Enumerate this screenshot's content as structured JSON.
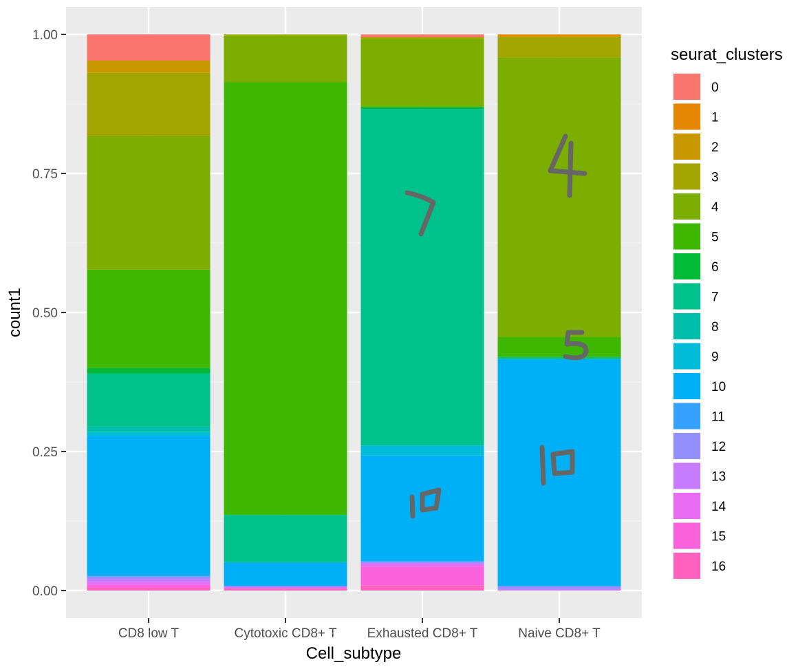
{
  "chart_data": {
    "type": "bar",
    "stacked": "fill",
    "xlabel": "Cell_subtype",
    "ylabel": "count1",
    "ylim": [
      0,
      1
    ],
    "y_ticks": [
      "0.00",
      "0.25",
      "0.50",
      "0.75",
      "1.00"
    ],
    "categories": [
      "CD8 low T",
      "Cytotoxic CD8+ T",
      "Exhausted CD8+ T",
      "Naive CD8+ T"
    ],
    "legend": {
      "title": "seurat_clusters",
      "position": "right",
      "entries": [
        "0",
        "1",
        "2",
        "3",
        "4",
        "5",
        "6",
        "7",
        "8",
        "9",
        "10",
        "11",
        "12",
        "13",
        "14",
        "15",
        "16"
      ]
    },
    "series": [
      {
        "name": "0",
        "color": "#F8766D",
        "values": [
          0.047,
          0.0,
          0.005,
          0.0
        ]
      },
      {
        "name": "1",
        "color": "#E58700",
        "values": [
          0.0,
          0.0,
          0.0,
          0.004
        ]
      },
      {
        "name": "2",
        "color": "#C99800",
        "values": [
          0.022,
          0.0,
          0.0,
          0.0
        ]
      },
      {
        "name": "3",
        "color": "#A3A500",
        "values": [
          0.114,
          0.002,
          0.003,
          0.038
        ]
      },
      {
        "name": "4",
        "color": "#7CAE00",
        "values": [
          0.24,
          0.084,
          0.122,
          0.502
        ]
      },
      {
        "name": "5",
        "color": "#3DB700",
        "values": [
          0.177,
          0.778,
          0.0,
          0.036
        ]
      },
      {
        "name": "6",
        "color": "#00BA38",
        "values": [
          0.01,
          0.0,
          0.004,
          0.0
        ]
      },
      {
        "name": "7",
        "color": "#00C08B",
        "values": [
          0.095,
          0.085,
          0.605,
          0.004
        ]
      },
      {
        "name": "8",
        "color": "#00BFAA",
        "values": [
          0.01,
          0.0,
          0.0,
          0.0
        ]
      },
      {
        "name": "9",
        "color": "#00BCD8",
        "values": [
          0.007,
          0.0,
          0.018,
          0.0
        ]
      },
      {
        "name": "10",
        "color": "#00B0F6",
        "values": [
          0.25,
          0.043,
          0.19,
          0.408
        ]
      },
      {
        "name": "11",
        "color": "#35A2FF",
        "values": [
          0.003,
          0.0,
          0.002,
          0.0
        ]
      },
      {
        "name": "12",
        "color": "#9590FF",
        "values": [
          0.004,
          0.0,
          0.0,
          0.005
        ]
      },
      {
        "name": "13",
        "color": "#C77CFF",
        "values": [
          0.006,
          0.004,
          0.004,
          0.003
        ]
      },
      {
        "name": "14",
        "color": "#E76BF3",
        "values": [
          0.005,
          0.0,
          0.004,
          0.0
        ]
      },
      {
        "name": "15",
        "color": "#FA62DB",
        "values": [
          0.005,
          0.0,
          0.034,
          0.0
        ]
      },
      {
        "name": "16",
        "color": "#FF62BC",
        "values": [
          0.005,
          0.004,
          0.009,
          0.0
        ]
      }
    ],
    "annotations": [
      {
        "text": "7",
        "category": "Exhausted CD8+ T",
        "y": 0.7
      },
      {
        "text": "10",
        "category": "Exhausted CD8+ T",
        "y": 0.17
      },
      {
        "text": "4",
        "category": "Naive CD8+ T",
        "y": 0.76
      },
      {
        "text": "5",
        "category": "Naive CD8+ T",
        "y": 0.44
      },
      {
        "text": "10",
        "category": "Naive CD8+ T",
        "y": 0.23
      }
    ]
  },
  "colors": {
    "panel_background": "#EBEBEB",
    "grid_major": "#FFFFFF",
    "grid_minor": "#F4F4F4",
    "tick_text": "#4D4D4D",
    "annotation_ink": "#666666"
  }
}
